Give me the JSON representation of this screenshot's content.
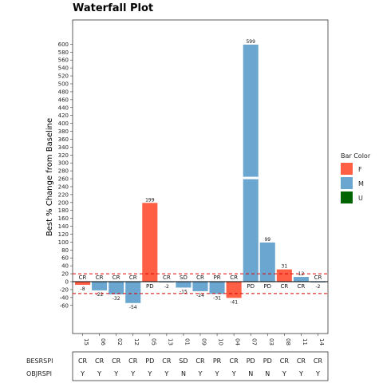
{
  "chart_data": {
    "type": "bar",
    "title": "Waterfall Plot",
    "ylabel": "Best % Change from Baseline",
    "ylim": [
      -70,
      630
    ],
    "axis_break": {
      "from": 260,
      "to": 580
    },
    "yticks": [
      -60,
      -40,
      -20,
      0,
      20,
      40,
      60,
      80,
      100,
      120,
      140,
      160,
      180,
      200,
      220,
      240,
      260,
      280,
      300,
      320,
      340,
      360,
      380,
      400,
      420,
      440,
      460,
      480,
      500,
      520,
      540,
      560,
      580,
      600
    ],
    "ytick_labels": [
      "-60",
      "-40",
      "-20",
      "0",
      "20",
      "40",
      "60",
      "80",
      "100",
      "120",
      "140",
      "160",
      "180",
      "200",
      "220",
      "240",
      "260",
      "280",
      "300",
      "320",
      "340",
      "360",
      "380",
      "400",
      "420",
      "440",
      "460",
      "480",
      "500",
      "520",
      "540",
      "560",
      "580",
      "600"
    ],
    "reference_lines": [
      20,
      -30
    ],
    "categories": [
      "15",
      "06",
      "02",
      "12",
      "05",
      "13",
      "01",
      "09",
      "10",
      "04",
      "07",
      "03",
      "08",
      "11",
      "14"
    ],
    "values": [
      -8,
      -22,
      -32,
      -54,
      199,
      -2,
      -15,
      -24,
      -31,
      -41,
      599,
      99,
      31,
      12,
      -2
    ],
    "colors_by_category": [
      "F",
      "M",
      "M",
      "M",
      "F",
      "M",
      "M",
      "M",
      "M",
      "F",
      "M",
      "M",
      "F",
      "M",
      "M"
    ],
    "response_labels": [
      "CR",
      "CR",
      "CR",
      "CR",
      "PD",
      "CR",
      "SD",
      "CR",
      "PR",
      "CR",
      "PD",
      "PD",
      "CR",
      "CR",
      "CR"
    ],
    "legend": {
      "title": "Bar Color",
      "placement": "right",
      "items": [
        {
          "label": "F",
          "color": "#ff5f45"
        },
        {
          "label": "M",
          "color": "#6aa6d0"
        },
        {
          "label": "U",
          "color": "#006400"
        }
      ]
    },
    "table": {
      "rows": [
        {
          "name": "BESRSPI",
          "values": [
            "CR",
            "CR",
            "CR",
            "CR",
            "PD",
            "CR",
            "SD",
            "CR",
            "PR",
            "CR",
            "PD",
            "PD",
            "CR",
            "CR",
            "CR"
          ]
        },
        {
          "name": "OBJRSPI",
          "values": [
            "Y",
            "Y",
            "Y",
            "Y",
            "Y",
            "Y",
            "N",
            "Y",
            "Y",
            "Y",
            "N",
            "N",
            "Y",
            "Y",
            "Y"
          ]
        }
      ]
    },
    "grid": false
  }
}
